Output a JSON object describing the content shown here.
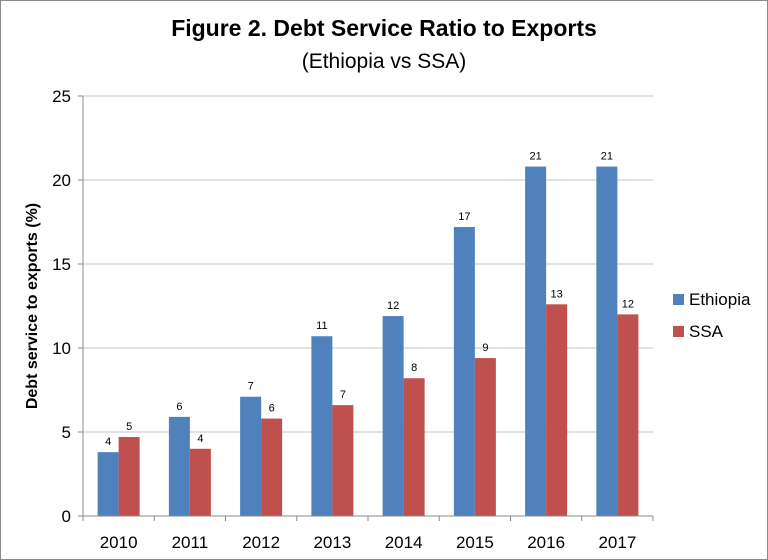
{
  "chart_data": {
    "type": "bar",
    "title": "Figure 2.  Debt Service Ratio to Exports",
    "subtitle": "(Ethiopia vs SSA)",
    "xlabel": "",
    "ylabel": "Debt service to exports (%)",
    "ylim": [
      0,
      25
    ],
    "yticks": [
      0,
      5,
      10,
      15,
      20,
      25
    ],
    "grid": true,
    "legend_position": "right",
    "categories": [
      "2010",
      "2011",
      "2012",
      "2013",
      "2014",
      "2015",
      "2016",
      "2017"
    ],
    "series": [
      {
        "name": "Ethiopia",
        "color": "#4f81bd",
        "values": [
          3.8,
          5.9,
          7.1,
          10.7,
          11.9,
          17.2,
          20.8,
          20.8
        ],
        "labels": [
          "4",
          "6",
          "7",
          "11",
          "12",
          "17",
          "21",
          "21"
        ]
      },
      {
        "name": "SSA",
        "color": "#c0504d",
        "values": [
          4.7,
          4.0,
          5.8,
          6.6,
          8.2,
          9.4,
          12.6,
          12.0
        ],
        "labels": [
          "5",
          "4",
          "6",
          "7",
          "8",
          "9",
          "13",
          "12"
        ]
      }
    ]
  }
}
